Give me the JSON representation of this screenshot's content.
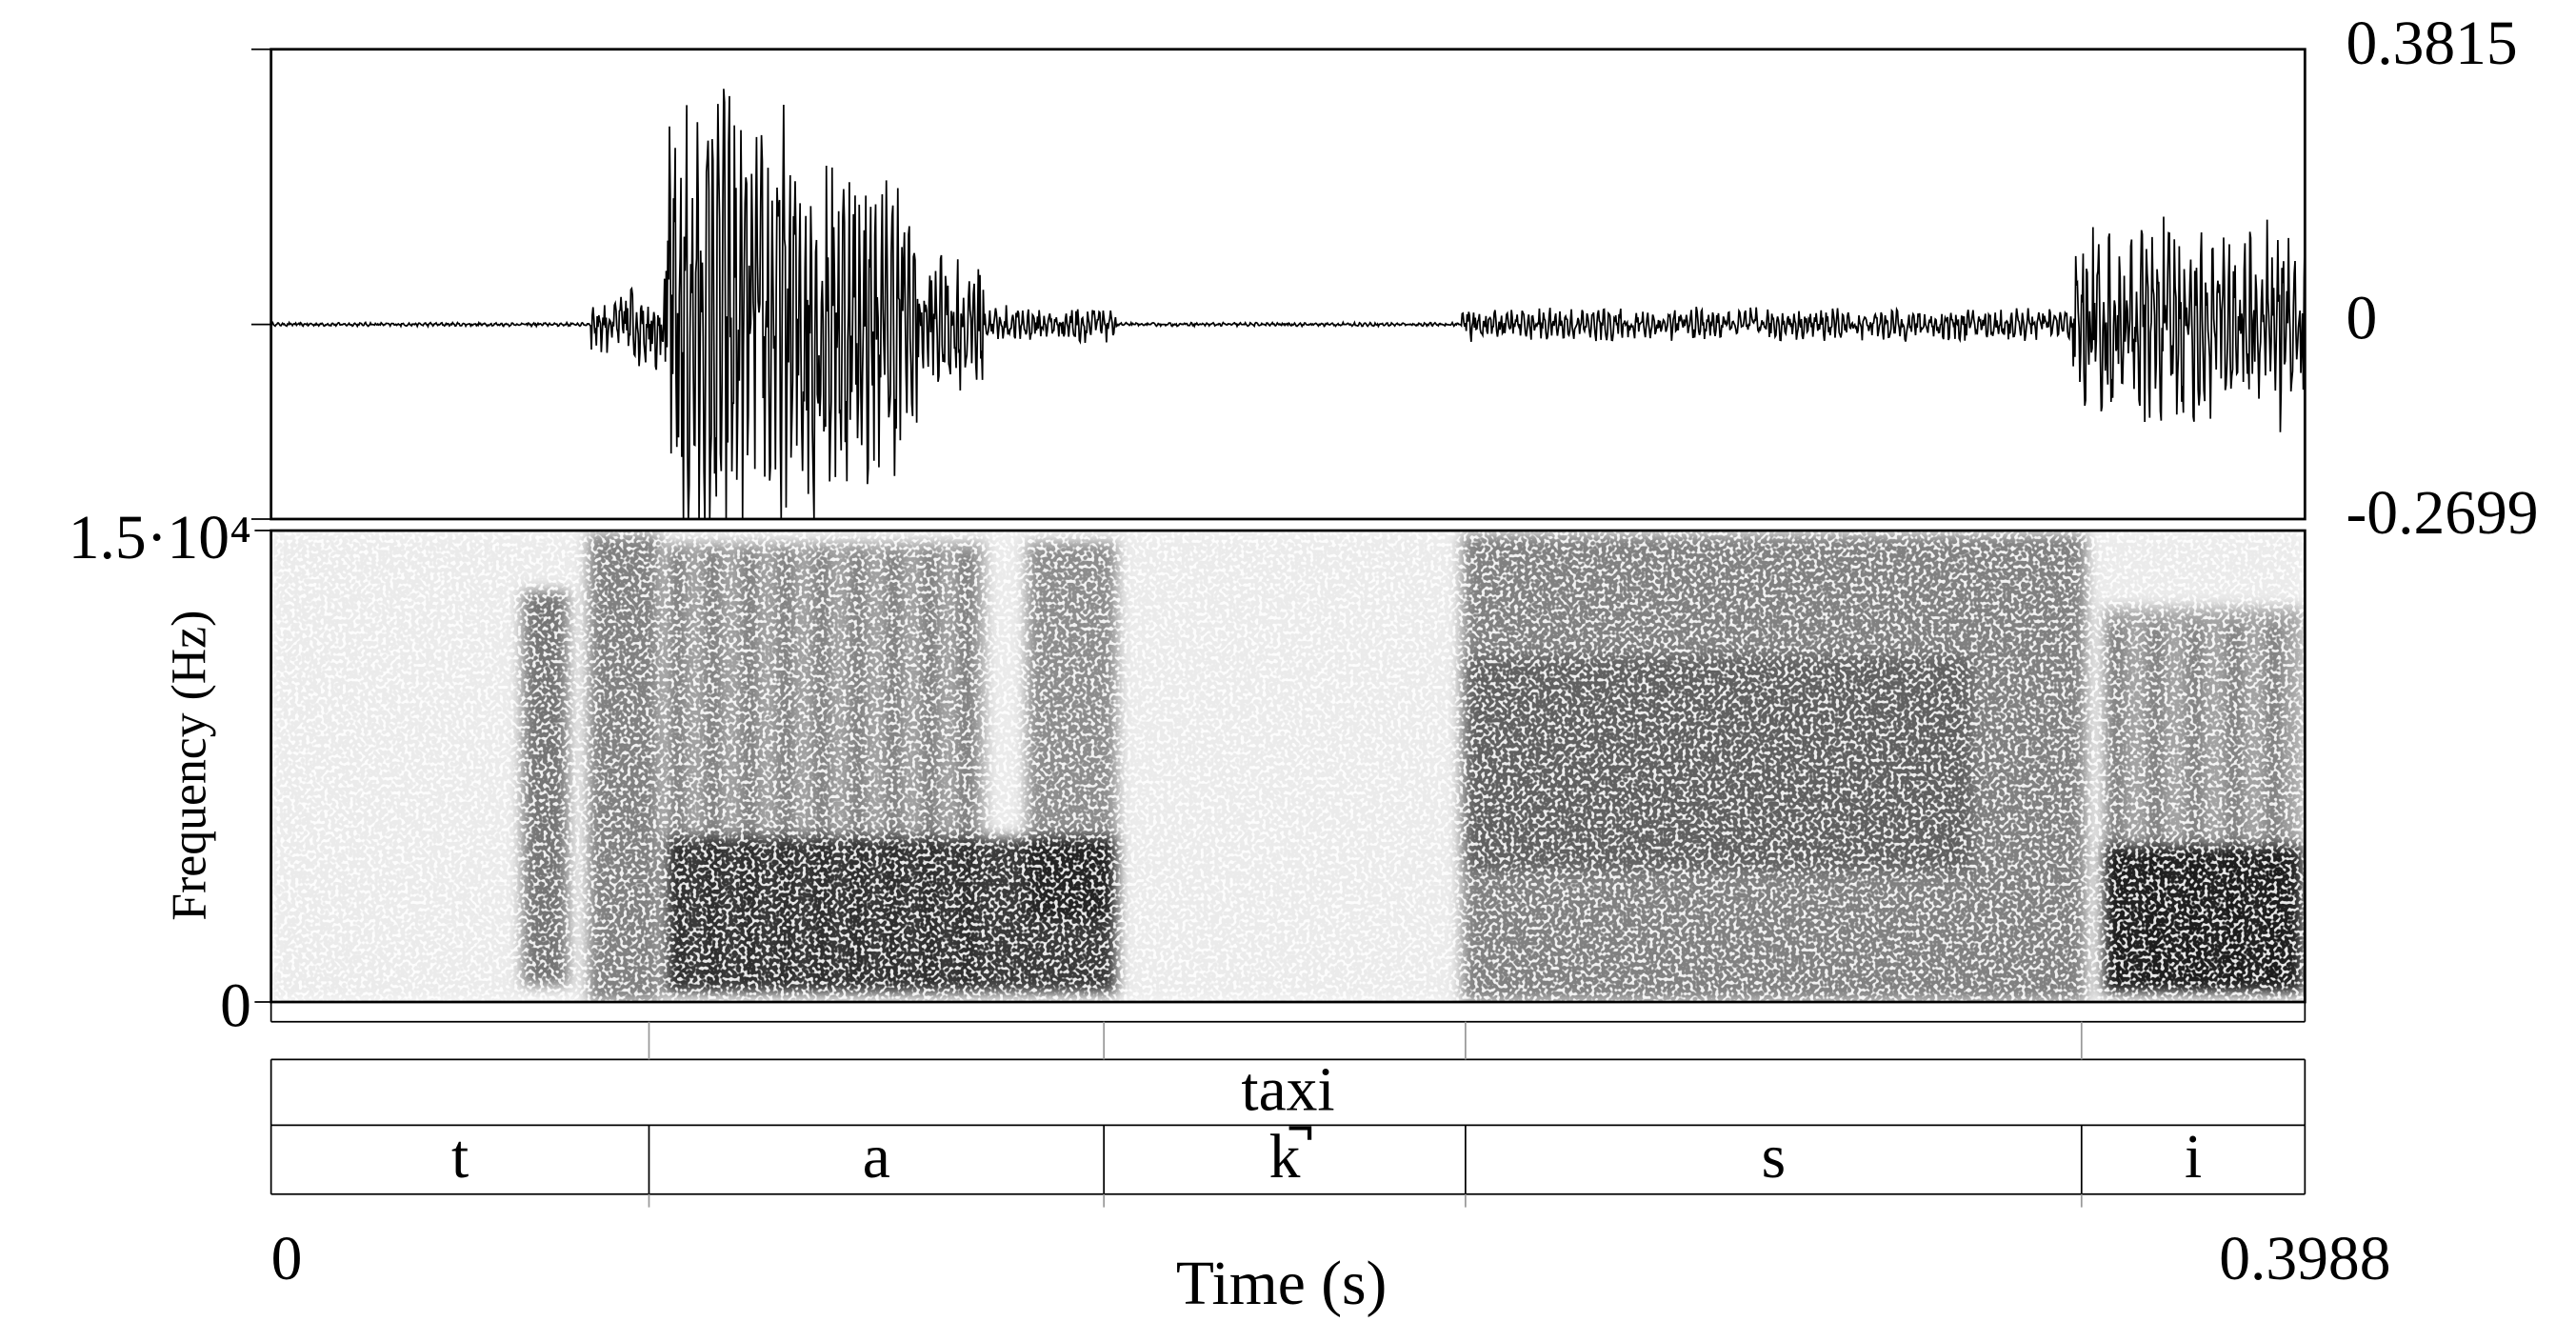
{
  "chart_data": [
    {
      "type": "waveform",
      "xlim": [
        0,
        0.3988
      ],
      "ylim": [
        -0.2699,
        0.3815
      ],
      "yticks": [
        0.3815,
        0,
        -0.2699
      ]
    },
    {
      "type": "spectrogram",
      "xlim": [
        0,
        0.3988
      ],
      "ylim": [
        0,
        15000
      ],
      "yticks": [
        {
          "value": 15000,
          "label": "1.5·10⁴"
        },
        0
      ],
      "ylabel": "Frequency (Hz)"
    },
    {
      "type": "textgrid",
      "xlim": [
        0,
        0.3988
      ],
      "xticks": [
        0,
        0.3988
      ],
      "xlabel": "Time (s)",
      "tiers": [
        {
          "labels": [
            "taxi"
          ],
          "bounds": [
            0,
            0.3988
          ]
        },
        {
          "labels": [
            "t",
            "a",
            "k̚",
            "s",
            "i"
          ],
          "bounds": [
            0,
            0.0741,
            0.1633,
            0.2342,
            0.355,
            0.3988
          ]
        }
      ]
    }
  ]
}
